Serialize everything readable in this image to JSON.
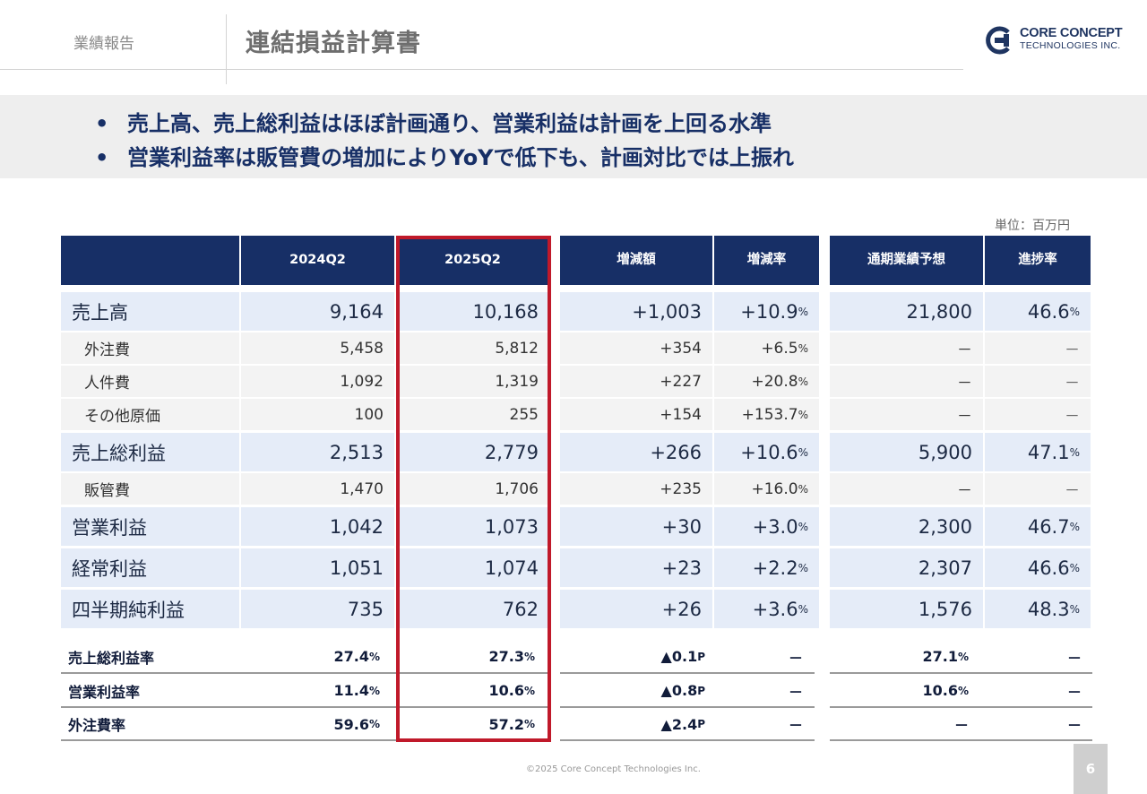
{
  "header": {
    "section": "業績報告",
    "title": "連結損益計算書",
    "logo_name": "CORE CONCEPT",
    "logo_sub": "TECHNOLOGIES INC."
  },
  "banner": {
    "bullet_glyph": "•",
    "bullets": [
      "売上高、売上総利益はほぼ計画通り、営業利益は計画を上回る水準",
      "営業利益率は販管費の増加によりYoYで低下も、計画対比では上振れ"
    ]
  },
  "unit_label": "単位：百万円",
  "table": {
    "headers": {
      "q_2024": [
        "2024",
        "Q2"
      ],
      "q_2025": [
        "2025",
        "Q2"
      ],
      "change": "増減額",
      "change_rate": "増減率",
      "forecast": "通期業績予想",
      "progress": "進捗率"
    },
    "pct_suffix": "%",
    "rows": [
      {
        "label": "売上高",
        "type": "major",
        "y2024": "9,164",
        "y2025": "10,168",
        "change": "+1,003",
        "rate": "+10.9",
        "forecast": "21,800",
        "progress": "46.6"
      },
      {
        "label": "外注費",
        "type": "minor",
        "y2024": "5,458",
        "y2025": "5,812",
        "change": "+354",
        "rate": "+6.5",
        "forecast": "－",
        "progress": "－"
      },
      {
        "label": "人件費",
        "type": "minor",
        "y2024": "1,092",
        "y2025": "1,319",
        "change": "+227",
        "rate": "+20.8",
        "forecast": "－",
        "progress": "－"
      },
      {
        "label": "その他原価",
        "type": "minor",
        "y2024": "100",
        "y2025": "255",
        "change": "+154",
        "rate": "+153.7",
        "forecast": "－",
        "progress": "－"
      },
      {
        "label": "売上総利益",
        "type": "major",
        "y2024": "2,513",
        "y2025": "2,779",
        "change": "+266",
        "rate": "+10.6",
        "forecast": "5,900",
        "progress": "47.1"
      },
      {
        "label": "販管費",
        "type": "minor",
        "y2024": "1,470",
        "y2025": "1,706",
        "change": "+235",
        "rate": "+16.0",
        "forecast": "－",
        "progress": "－"
      },
      {
        "label": "営業利益",
        "type": "major",
        "y2024": "1,042",
        "y2025": "1,073",
        "change": "+30",
        "rate": "+3.0",
        "forecast": "2,300",
        "progress": "46.7"
      },
      {
        "label": "経常利益",
        "type": "major",
        "y2024": "1,051",
        "y2025": "1,074",
        "change": "+23",
        "rate": "+2.2",
        "forecast": "2,307",
        "progress": "46.6"
      },
      {
        "label": "四半期純利益",
        "type": "major",
        "y2024": "735",
        "y2025": "762",
        "change": "+26",
        "rate": "+3.6",
        "forecast": "1,576",
        "progress": "48.3"
      }
    ],
    "ratios": [
      {
        "label": "売上総利益率",
        "y2024": "27.4",
        "y2025": "27.3",
        "change": "▲0.1",
        "change_unit": "P",
        "rate": "－",
        "forecast": "27.1",
        "progress": "－"
      },
      {
        "label": "営業利益率",
        "y2024": "11.4",
        "y2025": "10.6",
        "change": "▲0.8",
        "change_unit": "P",
        "rate": "－",
        "forecast": "10.6",
        "progress": "－"
      },
      {
        "label": "外注費率",
        "y2024": "59.6",
        "y2025": "57.2",
        "change": "▲2.4",
        "change_unit": "P",
        "rate": "－",
        "forecast": "－",
        "progress": "－"
      }
    ]
  },
  "footer": {
    "copyright": "©2025 Core Concept Technologies Inc.",
    "page": "6"
  },
  "colors": {
    "header_navy": "#172f66",
    "highlight_red": "#c0192a",
    "row_major_bg": "#e5ecf8",
    "row_minor_bg": "#f3f3f3"
  }
}
